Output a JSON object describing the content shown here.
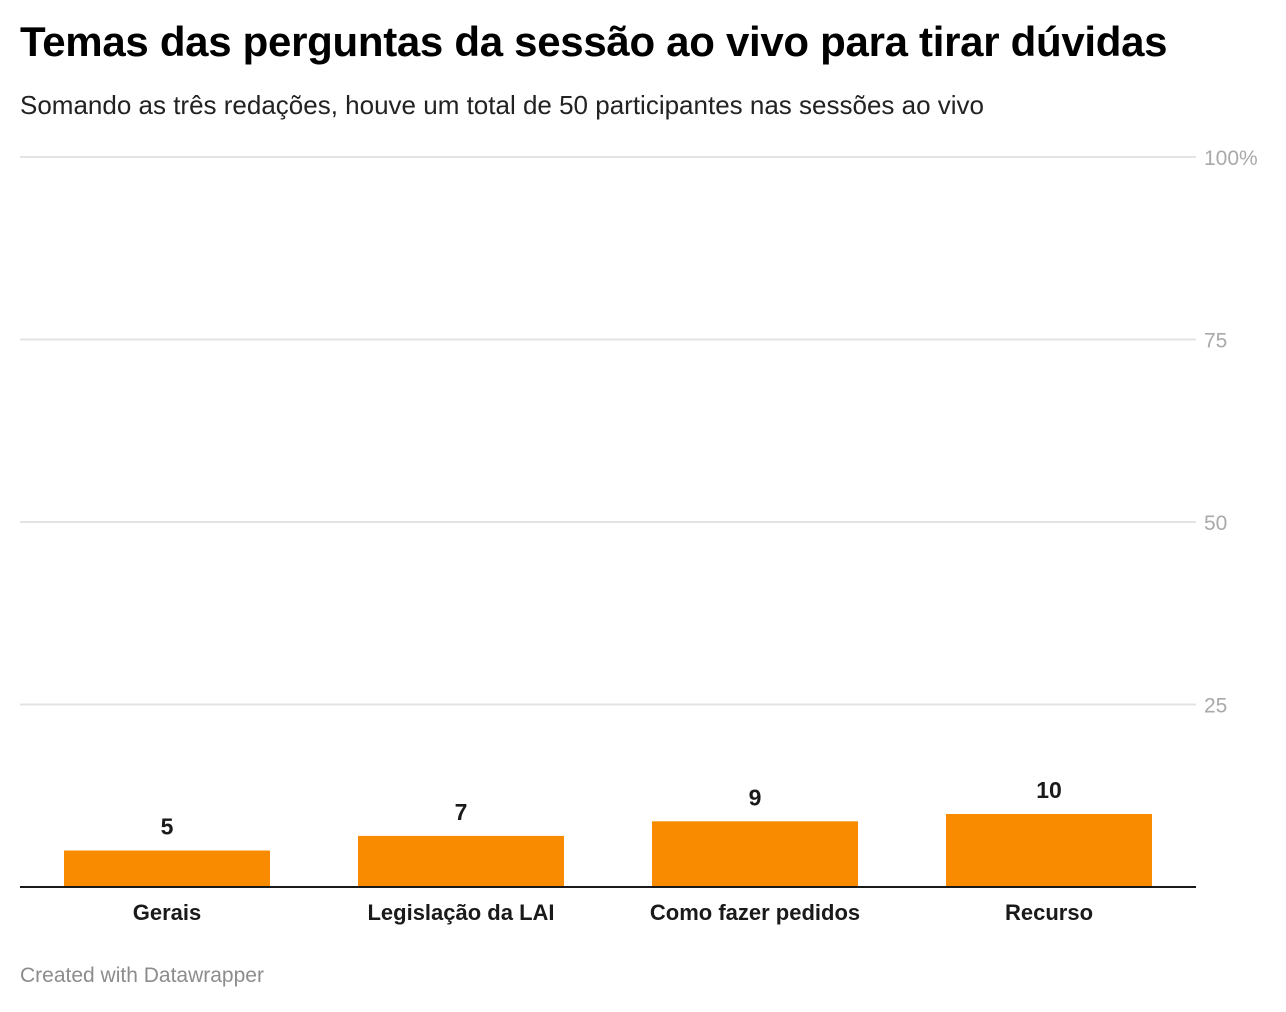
{
  "header": {
    "title": "Temas das perguntas da sessão ao vivo para tirar dúvidas",
    "subtitle": "Somando as três redações, houve um total de 50 participantes nas sessões ao vivo"
  },
  "footer": {
    "credit": "Created with Datawrapper"
  },
  "chart_data": {
    "type": "bar",
    "title": "Temas das perguntas da sessão ao vivo para tirar dúvidas",
    "subtitle": "Somando as três redações, houve um total de 50 participantes nas sessões ao vivo",
    "categories": [
      "Gerais",
      "Legislação da LAI",
      "Como fazer pedidos",
      "Recurso"
    ],
    "values": [
      5,
      7,
      9,
      10
    ],
    "value_labels": [
      "5",
      "7",
      "9",
      "10"
    ],
    "ylim": [
      0,
      100
    ],
    "yticks": [
      25,
      50,
      75,
      100
    ],
    "ytick_labels": [
      "25",
      "50",
      "75",
      "100%"
    ],
    "xlabel": "",
    "ylabel": "",
    "grid": true,
    "y_axis_side": "right",
    "bar_color": "#f98b00"
  }
}
